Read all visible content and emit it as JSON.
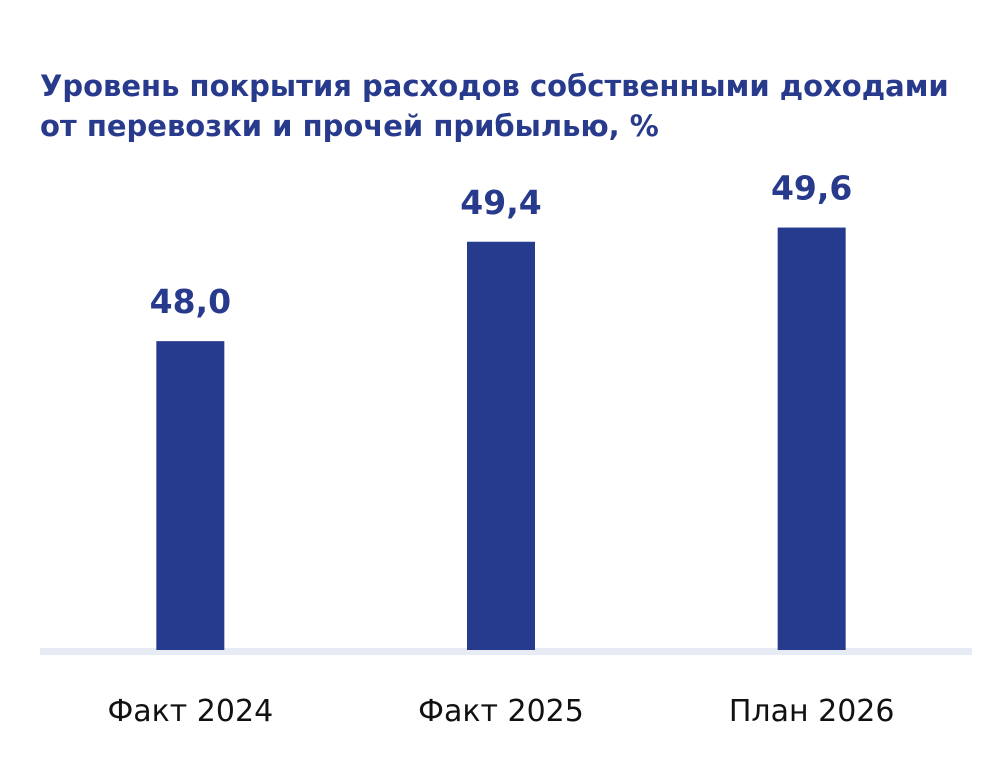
{
  "chart_data": {
    "type": "bar",
    "title_lines": [
      "Уровень покрытия расходов собственными доходами",
      "от перевозки и прочей прибылью, %"
    ],
    "categories": [
      "Факт 2024",
      "Факт 2025",
      "План 2026"
    ],
    "values": [
      48.0,
      49.4,
      49.6
    ],
    "value_labels": [
      "48,0",
      "49,4",
      "49,6"
    ],
    "xlabel": "",
    "ylabel": "",
    "grid": false,
    "legend": "none",
    "bar_color": "#263a8e",
    "baseline_color": "#e6ebf4"
  }
}
